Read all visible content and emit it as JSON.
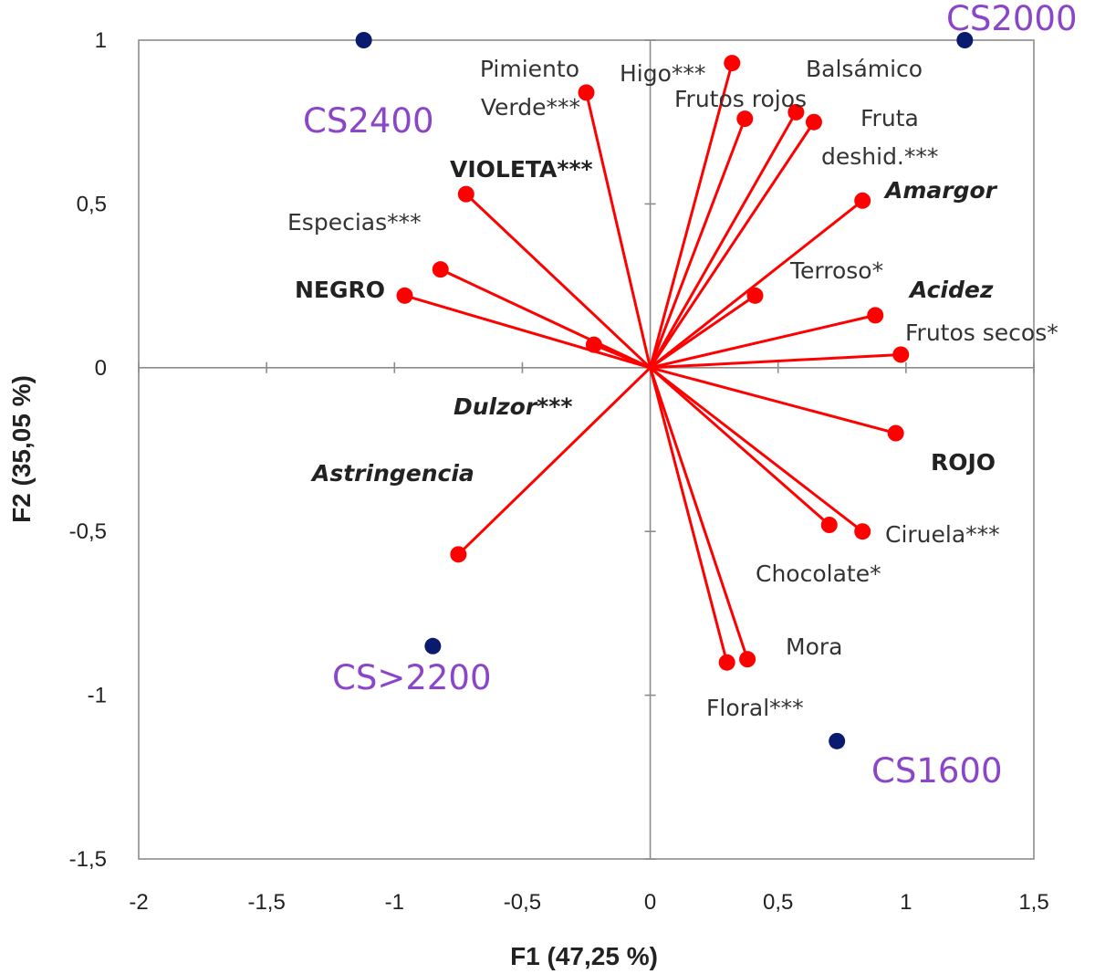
{
  "chart_data": {
    "type": "scatter",
    "subtype": "pca-biplot",
    "title": "",
    "xlabel": "F1 (47,25 %)",
    "ylabel": "F2 (35,05 %)",
    "xlim": [
      -2,
      1.5
    ],
    "ylim": [
      -1.5,
      1
    ],
    "xticks": [
      "-2",
      "-1,5",
      "-1",
      "-0,5",
      "0",
      "0,5",
      "1",
      "1,5"
    ],
    "xtick_values": [
      -2,
      -1.5,
      -1,
      -0.5,
      0,
      0.5,
      1,
      1.5
    ],
    "yticks": [
      "1",
      "0,5",
      "0",
      "-0,5",
      "-1",
      "-1,5"
    ],
    "ytick_values": [
      1,
      0.5,
      0,
      -0.5,
      -1,
      -1.5
    ],
    "grid": false,
    "colors": {
      "vectors": "#ff0000",
      "observations": "#0a1a6e",
      "observation_labels": "#8a45c8"
    },
    "variables": [
      {
        "label": "Pimiento",
        "x": -0.25,
        "y": 0.84
      },
      {
        "label": "Verde***",
        "x": -0.25,
        "y": 0.84
      },
      {
        "label": "Higo***",
        "x": 0.32,
        "y": 0.93
      },
      {
        "label": "Balsámico",
        "x": 0.57,
        "y": 0.78
      },
      {
        "label": "Frutos rojos",
        "x": 0.37,
        "y": 0.76
      },
      {
        "label": "Fruta",
        "x": 0.64,
        "y": 0.75
      },
      {
        "label": "deshid.***",
        "x": 0.64,
        "y": 0.75
      },
      {
        "label": "Amargor",
        "x": 0.83,
        "y": 0.51,
        "style": "bold-italic"
      },
      {
        "label": "VIOLETA***",
        "x": -0.72,
        "y": 0.53,
        "style": "bold"
      },
      {
        "label": "Especias***",
        "x": -0.82,
        "y": 0.3
      },
      {
        "label": "NEGRO",
        "x": -0.96,
        "y": 0.22,
        "style": "bold"
      },
      {
        "label": "Terroso*",
        "x": 0.41,
        "y": 0.22
      },
      {
        "label": "Acidez",
        "x": 0.88,
        "y": 0.16,
        "style": "bold-italic"
      },
      {
        "label": "Frutos secos*",
        "x": 0.98,
        "y": 0.04
      },
      {
        "label": "Dulzor***",
        "x": -0.22,
        "y": 0.07,
        "style": "bold-italic"
      },
      {
        "label": "ROJO",
        "x": 0.96,
        "y": -0.2,
        "style": "bold"
      },
      {
        "label": "Astringencia",
        "x": -0.75,
        "y": -0.57,
        "style": "bold-italic"
      },
      {
        "label": "Ciruela***",
        "x": 0.83,
        "y": -0.5
      },
      {
        "label": "Chocolate*",
        "x": 0.7,
        "y": -0.48
      },
      {
        "label": "Mora",
        "x": 0.38,
        "y": -0.89
      },
      {
        "label": "Floral***",
        "x": 0.3,
        "y": -0.9
      }
    ],
    "observations": [
      {
        "label": "CS2400",
        "x": -1.12,
        "y": 1.0
      },
      {
        "label": "CS2000",
        "x": 1.23,
        "y": 1.0
      },
      {
        "label": "CS>2200",
        "x": -0.85,
        "y": -0.85
      },
      {
        "label": "CS1600",
        "x": 0.73,
        "y": -1.14
      }
    ]
  }
}
